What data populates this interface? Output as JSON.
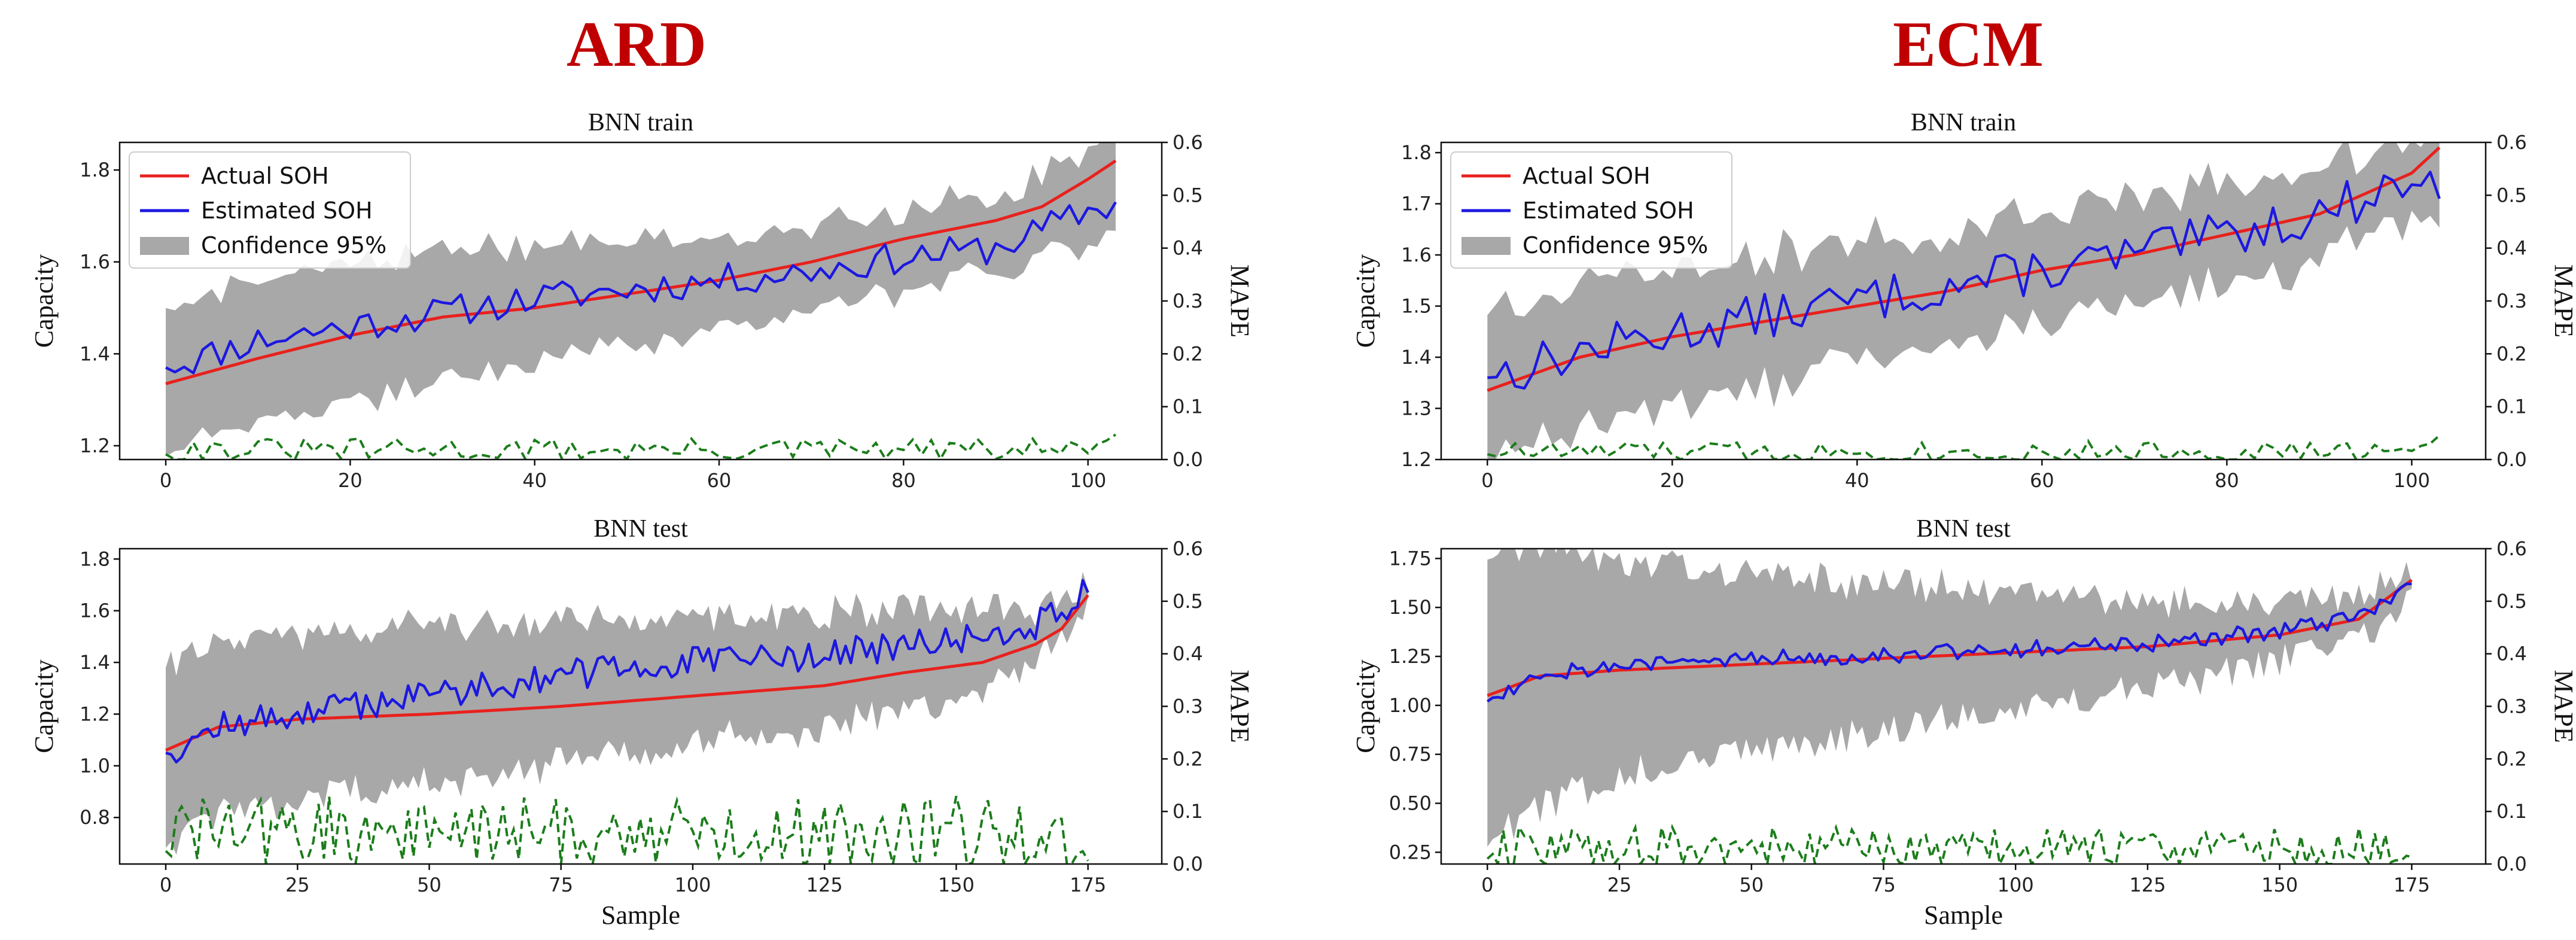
{
  "colors": {
    "actual": "#e8211d",
    "estimated": "#1c18e0",
    "confidence": "#a8a8a8",
    "mape": "#1b7d1b",
    "heading": "#c00000"
  },
  "legend": {
    "actual": "Actual SOH",
    "estimated": "Estimated SOH",
    "confidence": "Confidence 95%"
  },
  "chart_data": [
    {
      "type": "line",
      "group": "ARD",
      "title": "BNN train",
      "xlabel": "",
      "ylabel": "Capacity",
      "y2label": "MAPE",
      "xlim": [
        -5,
        108
      ],
      "xticks": [
        0,
        20,
        40,
        60,
        80,
        100
      ],
      "ylim": [
        1.17,
        1.86
      ],
      "yticks": [
        1.2,
        1.4,
        1.6,
        1.8
      ],
      "ytick_labels": [
        "1.2",
        "1.4",
        "1.6",
        "1.8"
      ],
      "y2lim": [
        0,
        0.6
      ],
      "y2ticks": [
        0,
        0.1,
        0.2,
        0.3,
        0.4,
        0.5,
        0.6
      ],
      "y2tick_labels": [
        "0.0",
        "0.1",
        "0.2",
        "0.3",
        "0.4",
        "0.5",
        "0.6"
      ],
      "n": 104,
      "series": {
        "actual": {
          "anchors": [
            [
              0,
              1.335
            ],
            [
              10,
              1.39
            ],
            [
              20,
              1.44
            ],
            [
              30,
              1.48
            ],
            [
              40,
              1.5
            ],
            [
              50,
              1.53
            ],
            [
              60,
              1.56
            ],
            [
              70,
              1.6
            ],
            [
              80,
              1.65
            ],
            [
              90,
              1.69
            ],
            [
              95,
              1.72
            ],
            [
              100,
              1.78
            ],
            [
              103,
              1.82
            ]
          ]
        },
        "estimated": {
          "anchors": [
            [
              0,
              1.37
            ],
            [
              10,
              1.43
            ],
            [
              20,
              1.46
            ],
            [
              30,
              1.49
            ],
            [
              40,
              1.52
            ],
            [
              50,
              1.54
            ],
            [
              60,
              1.56
            ],
            [
              70,
              1.58
            ],
            [
              80,
              1.61
            ],
            [
              90,
              1.63
            ],
            [
              100,
              1.71
            ],
            [
              103,
              1.73
            ]
          ],
          "noise": 0.035,
          "seed": 11
        },
        "confidence": {
          "halfwidth_anchors": [
            [
              0,
              0.16
            ],
            [
              30,
              0.14
            ],
            [
              60,
              0.1
            ],
            [
              90,
              0.08
            ],
            [
              103,
              0.11
            ]
          ],
          "noise": 0.025,
          "seed": 21
        },
        "mape": {
          "base": 0.018,
          "amp": 0.022,
          "end": 0.045,
          "seed": 31
        }
      }
    },
    {
      "type": "line",
      "group": "ARD",
      "title": "BNN test",
      "xlabel": "Sample",
      "ylabel": "Capacity",
      "y2label": "MAPE",
      "xlim": [
        -8.75,
        189
      ],
      "xticks": [
        0,
        25,
        50,
        75,
        100,
        125,
        150,
        175
      ],
      "ylim": [
        0.62,
        1.84
      ],
      "yticks": [
        0.8,
        1.0,
        1.2,
        1.4,
        1.6,
        1.8
      ],
      "ytick_labels": [
        "0.8",
        "1.0",
        "1.2",
        "1.4",
        "1.6",
        "1.8"
      ],
      "y2lim": [
        0,
        0.6
      ],
      "y2ticks": [
        0,
        0.1,
        0.2,
        0.3,
        0.4,
        0.5,
        0.6
      ],
      "y2tick_labels": [
        "0.0",
        "0.1",
        "0.2",
        "0.3",
        "0.4",
        "0.5",
        "0.6"
      ],
      "n": 176,
      "series": {
        "actual": {
          "anchors": [
            [
              0,
              1.06
            ],
            [
              10,
              1.15
            ],
            [
              25,
              1.18
            ],
            [
              50,
              1.2
            ],
            [
              75,
              1.23
            ],
            [
              100,
              1.27
            ],
            [
              125,
              1.31
            ],
            [
              140,
              1.36
            ],
            [
              155,
              1.4
            ],
            [
              165,
              1.47
            ],
            [
              170,
              1.53
            ],
            [
              175,
              1.66
            ]
          ]
        },
        "estimated": {
          "anchors": [
            [
              0,
              1.05
            ],
            [
              10,
              1.15
            ],
            [
              25,
              1.2
            ],
            [
              50,
              1.28
            ],
            [
              75,
              1.35
            ],
            [
              100,
              1.4
            ],
            [
              125,
              1.43
            ],
            [
              150,
              1.48
            ],
            [
              165,
              1.55
            ],
            [
              175,
              1.67
            ]
          ],
          "noise": 0.06,
          "seed": 12
        },
        "confidence": {
          "halfwidth_anchors": [
            [
              0,
              0.35
            ],
            [
              50,
              0.3
            ],
            [
              100,
              0.25
            ],
            [
              150,
              0.18
            ],
            [
              175,
              0.06
            ]
          ],
          "noise": 0.05,
          "seed": 22
        },
        "mape": {
          "base": 0.06,
          "amp": 0.07,
          "end": 0.0,
          "seed": 32
        }
      }
    },
    {
      "type": "line",
      "group": "ECM",
      "title": "BNN train",
      "xlabel": "",
      "ylabel": "Capacity",
      "y2label": "MAPE",
      "xlim": [
        -5,
        108
      ],
      "xticks": [
        0,
        20,
        40,
        60,
        80,
        100
      ],
      "ylim": [
        1.2,
        1.82
      ],
      "yticks": [
        1.2,
        1.3,
        1.4,
        1.5,
        1.6,
        1.7,
        1.8
      ],
      "ytick_labels": [
        "1.2",
        "1.3",
        "1.4",
        "1.5",
        "1.6",
        "1.7",
        "1.8"
      ],
      "y2lim": [
        0,
        0.6
      ],
      "y2ticks": [
        0,
        0.1,
        0.2,
        0.3,
        0.4,
        0.5,
        0.6
      ],
      "y2tick_labels": [
        "0.0",
        "0.1",
        "0.2",
        "0.3",
        "0.4",
        "0.5",
        "0.6"
      ],
      "n": 104,
      "series": {
        "actual": {
          "anchors": [
            [
              0,
              1.335
            ],
            [
              10,
              1.4
            ],
            [
              20,
              1.44
            ],
            [
              30,
              1.47
            ],
            [
              40,
              1.5
            ],
            [
              50,
              1.53
            ],
            [
              60,
              1.57
            ],
            [
              70,
              1.6
            ],
            [
              80,
              1.64
            ],
            [
              90,
              1.68
            ],
            [
              100,
              1.76
            ],
            [
              103,
              1.81
            ]
          ]
        },
        "estimated": {
          "anchors": [
            [
              0,
              1.36
            ],
            [
              10,
              1.41
            ],
            [
              20,
              1.45
            ],
            [
              30,
              1.48
            ],
            [
              40,
              1.51
            ],
            [
              50,
              1.54
            ],
            [
              60,
              1.57
            ],
            [
              70,
              1.6
            ],
            [
              80,
              1.64
            ],
            [
              90,
              1.68
            ],
            [
              100,
              1.75
            ],
            [
              103,
              1.71
            ]
          ],
          "noise": 0.045,
          "seed": 13
        },
        "confidence": {
          "halfwidth_anchors": [
            [
              0,
              0.15
            ],
            [
              40,
              0.12
            ],
            [
              80,
              0.1
            ],
            [
              103,
              0.08
            ]
          ],
          "noise": 0.03,
          "seed": 23
        },
        "mape": {
          "base": 0.015,
          "amp": 0.02,
          "end": 0.04,
          "seed": 33
        }
      }
    },
    {
      "type": "line",
      "group": "ECM",
      "title": "BNN test",
      "xlabel": "Sample",
      "ylabel": "Capacity",
      "y2label": "MAPE",
      "xlim": [
        -8.75,
        189
      ],
      "xticks": [
        0,
        25,
        50,
        75,
        100,
        125,
        150,
        175
      ],
      "ylim": [
        0.19,
        1.8
      ],
      "yticks": [
        0.25,
        0.5,
        0.75,
        1.0,
        1.25,
        1.5,
        1.75
      ],
      "ytick_labels": [
        "0.25",
        "0.50",
        "0.75",
        "1.00",
        "1.25",
        "1.50",
        "1.75"
      ],
      "y2lim": [
        0,
        0.6
      ],
      "y2ticks": [
        0,
        0.1,
        0.2,
        0.3,
        0.4,
        0.5,
        0.6
      ],
      "y2tick_labels": [
        "0.0",
        "0.1",
        "0.2",
        "0.3",
        "0.4",
        "0.5",
        "0.6"
      ],
      "n": 176,
      "series": {
        "actual": {
          "anchors": [
            [
              0,
              1.05
            ],
            [
              10,
              1.15
            ],
            [
              25,
              1.18
            ],
            [
              50,
              1.21
            ],
            [
              75,
              1.24
            ],
            [
              100,
              1.27
            ],
            [
              125,
              1.3
            ],
            [
              150,
              1.36
            ],
            [
              165,
              1.44
            ],
            [
              175,
              1.64
            ]
          ]
        },
        "estimated": {
          "anchors": [
            [
              0,
              1.02
            ],
            [
              10,
              1.17
            ],
            [
              25,
              1.2
            ],
            [
              50,
              1.24
            ],
            [
              75,
              1.26
            ],
            [
              100,
              1.29
            ],
            [
              125,
              1.31
            ],
            [
              150,
              1.38
            ],
            [
              165,
              1.45
            ],
            [
              175,
              1.62
            ]
          ],
          "noise": 0.045,
          "seed": 14
        },
        "confidence": {
          "halfwidth_anchors": [
            [
              0,
              0.75
            ],
            [
              25,
              0.55
            ],
            [
              50,
              0.45
            ],
            [
              100,
              0.3
            ],
            [
              150,
              0.15
            ],
            [
              175,
              0.07
            ]
          ],
          "noise": 0.08,
          "seed": 24
        },
        "mape": {
          "base": 0.03,
          "amp": 0.04,
          "end": 0.01,
          "seed": 34
        }
      }
    }
  ],
  "headings": {
    "left": "ARD",
    "right": "ECM"
  }
}
